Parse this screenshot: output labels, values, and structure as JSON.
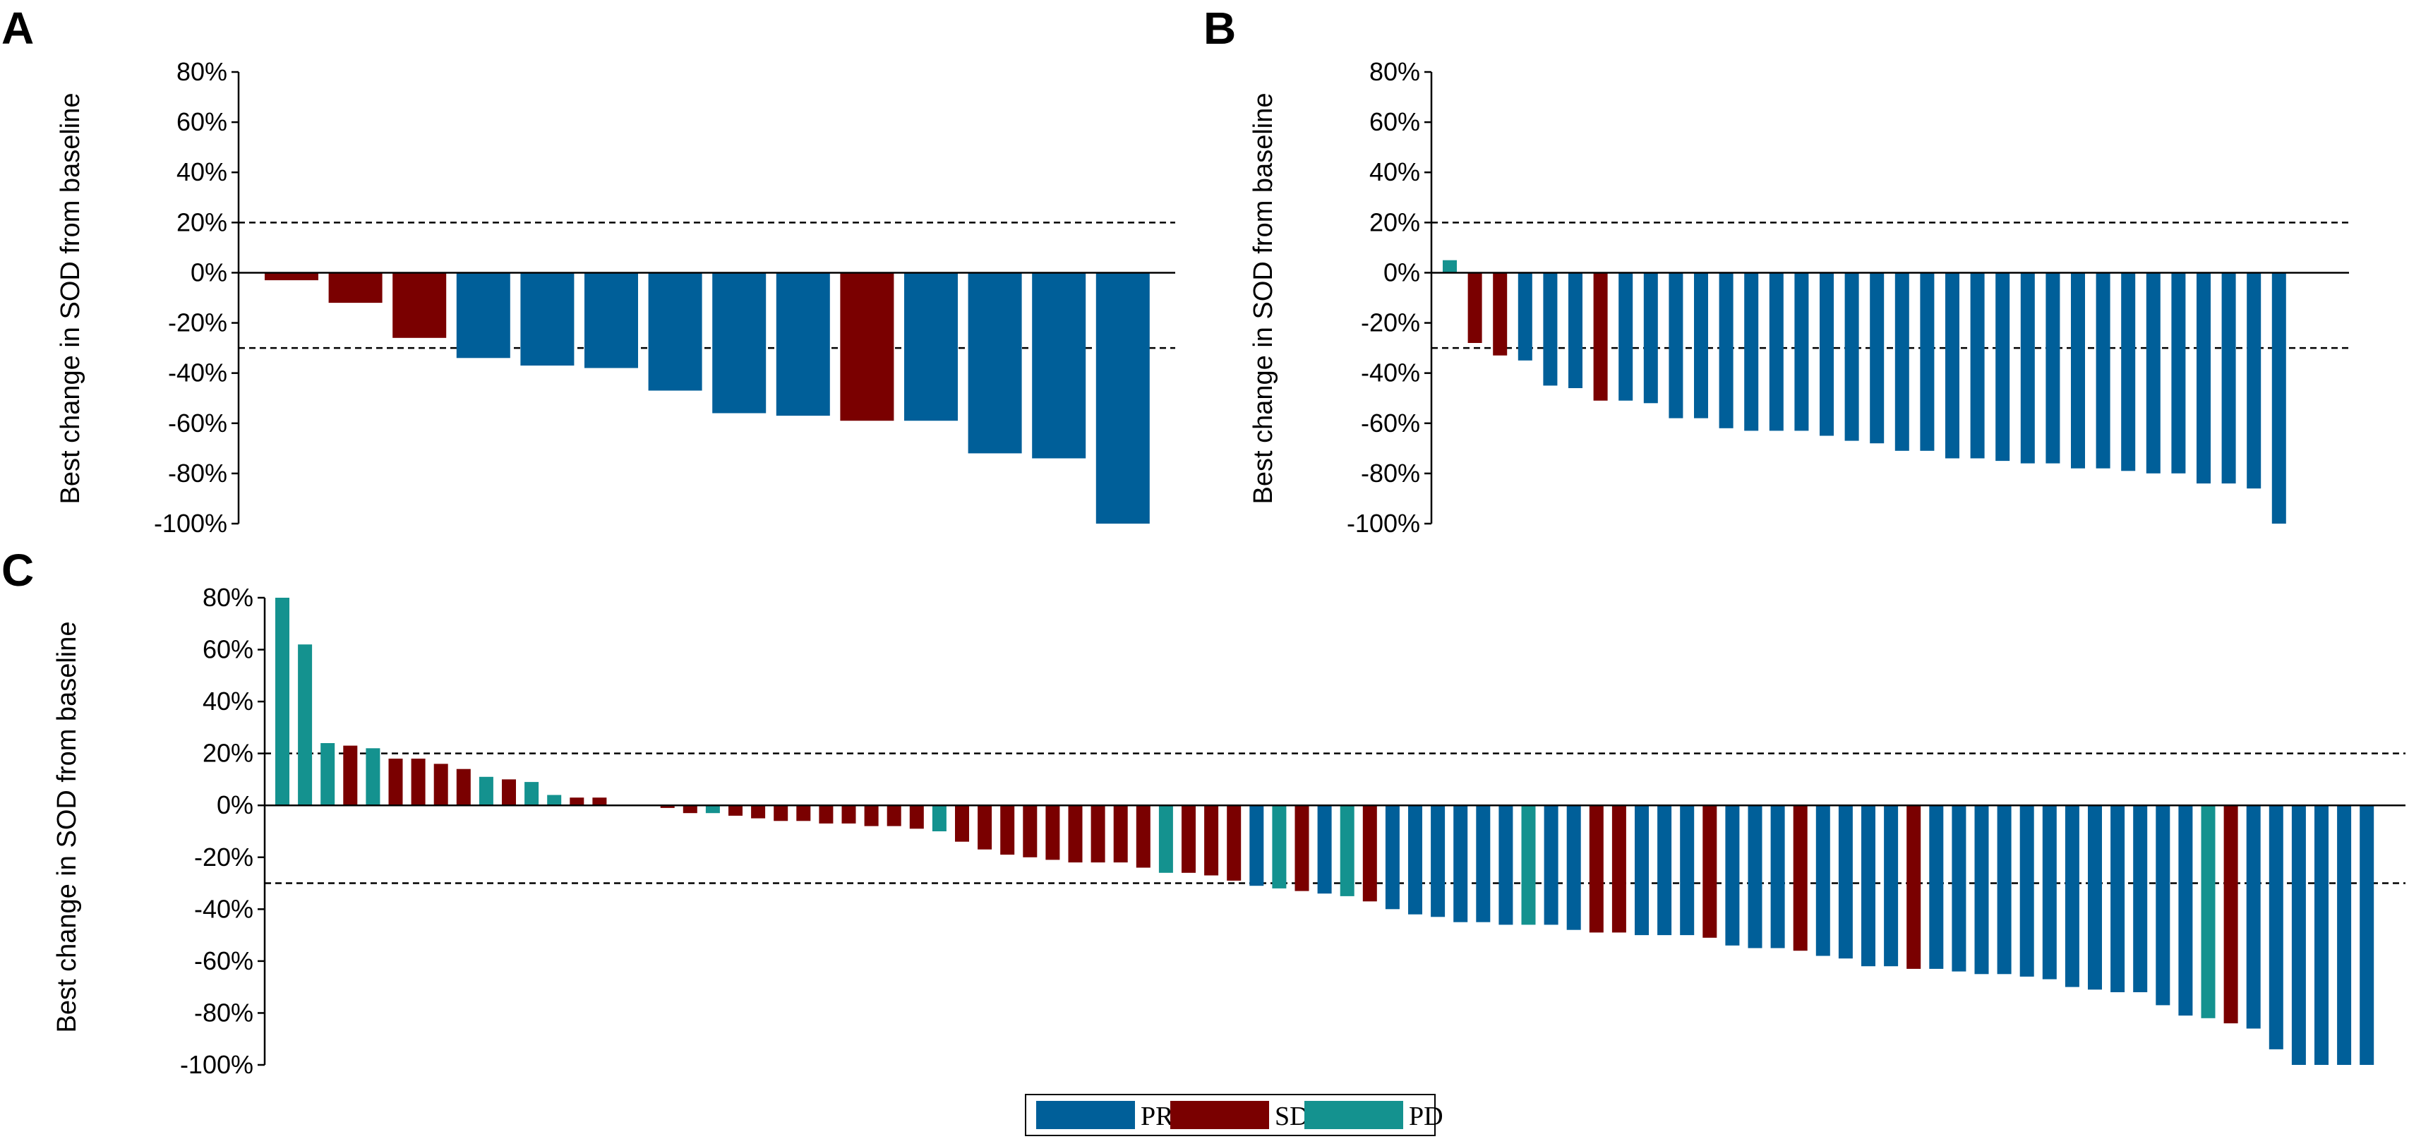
{
  "chart_data": [
    {
      "panel": "A",
      "type": "bar",
      "ylabel": "Best change in SOD from baseline",
      "ylim": [
        -100,
        80
      ],
      "yticks": [
        80,
        60,
        40,
        20,
        0,
        -20,
        -40,
        -60,
        -80,
        -100
      ],
      "ytick_labels": [
        "80%",
        "60%",
        "40%",
        "20%",
        "0%",
        "-20%",
        "-40%",
        "-60%",
        "-80%",
        "-100%"
      ],
      "reference_lines": [
        20,
        -30
      ],
      "values": [
        -3,
        -12,
        -26,
        -34,
        -37,
        -38,
        -47,
        -56,
        -57,
        -59,
        -59,
        -72,
        -74,
        -100
      ],
      "groups": [
        "SD",
        "SD",
        "SD",
        "PR",
        "PR",
        "PR",
        "PR",
        "PR",
        "PR",
        "SD",
        "PR",
        "PR",
        "PR",
        "PR"
      ]
    },
    {
      "panel": "B",
      "type": "bar",
      "ylabel": "Best change in SOD from baseline",
      "ylim": [
        -100,
        80
      ],
      "yticks": [
        80,
        60,
        40,
        20,
        0,
        -20,
        -40,
        -60,
        -80,
        -100
      ],
      "ytick_labels": [
        "80%",
        "60%",
        "40%",
        "20%",
        "0%",
        "-20%",
        "-40%",
        "-60%",
        "-80%",
        "-100%"
      ],
      "reference_lines": [
        20,
        -30
      ],
      "values": [
        5,
        -28,
        -33,
        -35,
        -45,
        -46,
        -51,
        -51,
        -52,
        -58,
        -58,
        -62,
        -63,
        -63,
        -63,
        -65,
        -67,
        -68,
        -71,
        -71,
        -74,
        -74,
        -75,
        -76,
        -76,
        -78,
        -78,
        -79,
        -80,
        -80,
        -84,
        -84,
        -86,
        -100
      ],
      "groups": [
        "PD",
        "SD",
        "SD",
        "PR",
        "PR",
        "PR",
        "SD",
        "PR",
        "PR",
        "PR",
        "PR",
        "PR",
        "PR",
        "PR",
        "PR",
        "PR",
        "PR",
        "PR",
        "PR",
        "PR",
        "PR",
        "PR",
        "PR",
        "PR",
        "PR",
        "PR",
        "PR",
        "PR",
        "PR",
        "PR",
        "PR",
        "PR",
        "PR",
        "PR"
      ]
    },
    {
      "panel": "C",
      "type": "bar",
      "ylabel": "Best change in SOD from baseline",
      "ylim": [
        -100,
        80
      ],
      "yticks": [
        80,
        60,
        40,
        20,
        0,
        -20,
        -40,
        -60,
        -80,
        -100
      ],
      "ytick_labels": [
        "80%",
        "60%",
        "40%",
        "20%",
        "0%",
        "-20%",
        "-40%",
        "-60%",
        "-80%",
        "-100%"
      ],
      "reference_lines": [
        20,
        -30
      ],
      "values": [
        80,
        62,
        24,
        23,
        22,
        18,
        18,
        16,
        14,
        11,
        10,
        9,
        4,
        3,
        3,
        0,
        0,
        -1,
        -3,
        -3,
        -4,
        -5,
        -6,
        -6,
        -7,
        -7,
        -8,
        -8,
        -9,
        -10,
        -14,
        -17,
        -19,
        -20,
        -21,
        -22,
        -22,
        -22,
        -24,
        -26,
        -26,
        -27,
        -29,
        -31,
        -32,
        -33,
        -34,
        -35,
        -37,
        -40,
        -42,
        -43,
        -45,
        -45,
        -46,
        -46,
        -46,
        -48,
        -49,
        -49,
        -50,
        -50,
        -50,
        -51,
        -54,
        -55,
        -55,
        -56,
        -58,
        -59,
        -62,
        -62,
        -63,
        -63,
        -64,
        -65,
        -65,
        -66,
        -67,
        -70,
        -71,
        -72,
        -72,
        -77,
        -81,
        -82,
        -84,
        -86,
        -94,
        -100,
        -100,
        -100,
        -100
      ],
      "groups": [
        "PD",
        "PD",
        "PD",
        "SD",
        "PD",
        "SD",
        "SD",
        "SD",
        "SD",
        "PD",
        "SD",
        "PD",
        "PD",
        "SD",
        "SD",
        "SD",
        "SD",
        "SD",
        "SD",
        "PD",
        "SD",
        "SD",
        "SD",
        "SD",
        "SD",
        "SD",
        "SD",
        "SD",
        "SD",
        "PD",
        "SD",
        "SD",
        "SD",
        "SD",
        "SD",
        "SD",
        "SD",
        "SD",
        "SD",
        "PD",
        "SD",
        "SD",
        "SD",
        "PR",
        "PD",
        "SD",
        "PR",
        "PD",
        "SD",
        "PR",
        "PR",
        "PR",
        "PR",
        "PR",
        "PR",
        "PD",
        "PR",
        "PR",
        "SD",
        "SD",
        "PR",
        "PR",
        "PR",
        "SD",
        "PR",
        "PR",
        "PR",
        "SD",
        "PR",
        "PR",
        "PR",
        "PR",
        "SD",
        "PR",
        "PR",
        "PR",
        "PR",
        "PR",
        "PR",
        "PR",
        "PR",
        "PR",
        "PR",
        "PR",
        "PR",
        "PD",
        "SD",
        "PR",
        "PR",
        "PR",
        "PR",
        "PR",
        "PR"
      ]
    }
  ],
  "legend": [
    {
      "label": "PR",
      "color": "#005f99"
    },
    {
      "label": "SD",
      "color": "#7a0000"
    },
    {
      "label": "PD",
      "color": "#14928f"
    }
  ]
}
